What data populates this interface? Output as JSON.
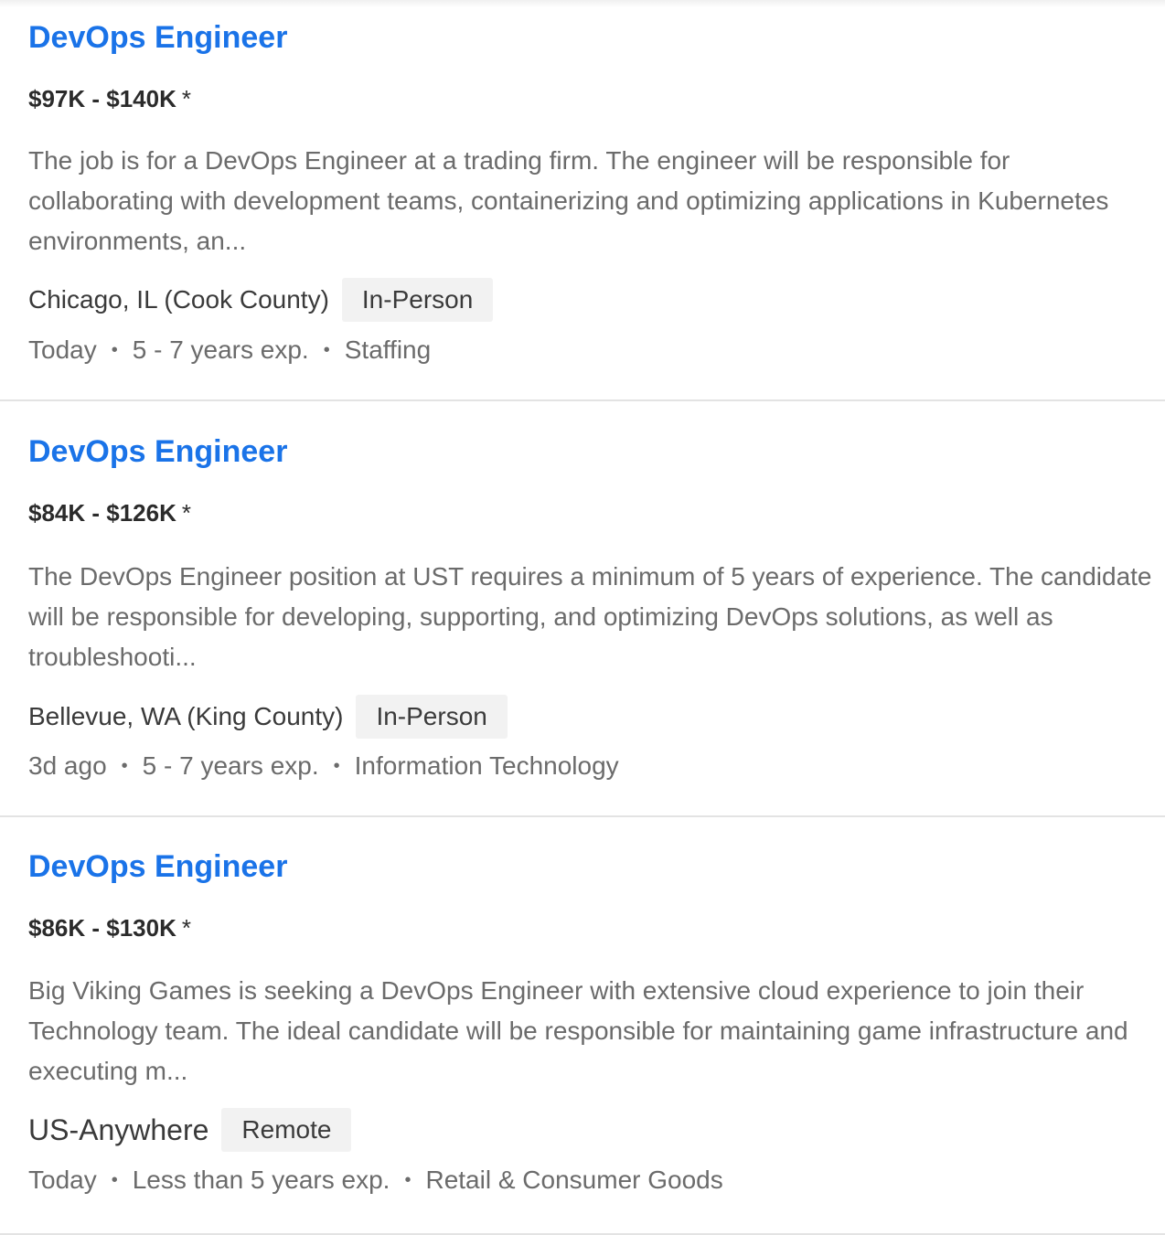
{
  "jobs": [
    {
      "title": "DevOps Engineer",
      "salary": "$97K - $140K",
      "salary_note": "*",
      "description": "The job is for a DevOps Engineer at a trading firm. The engineer will be responsible for collaborating with development teams, containerizing and optimizing applications in Kubernetes environments, an...",
      "location": "Chicago, IL (Cook County)",
      "work_type": "In-Person",
      "posted": "Today",
      "experience": "5 - 7 years exp.",
      "industry": "Staffing"
    },
    {
      "title": "DevOps Engineer",
      "salary": "$84K - $126K",
      "salary_note": "*",
      "description": "The DevOps Engineer position at UST requires a minimum of 5 years of experience. The candidate will be responsible for developing, supporting, and optimizing DevOps solutions, as well as troubleshooti...",
      "location": "Bellevue, WA (King County)",
      "work_type": "In-Person",
      "posted": "3d ago",
      "experience": "5 - 7 years exp.",
      "industry": "Information Technology"
    },
    {
      "title": "DevOps Engineer",
      "salary": "$86K - $130K",
      "salary_note": "*",
      "description": "Big Viking Games is seeking a DevOps Engineer with extensive cloud experience to join their Technology team. The ideal candidate will be responsible for maintaining game infrastructure and executing m...",
      "location": "US-Anywhere",
      "work_type": "Remote",
      "posted": "Today",
      "experience": "Less than 5 years exp.",
      "industry": "Retail & Consumer Goods"
    }
  ],
  "separator": "•",
  "colors": {
    "title_link": "#1a73e8",
    "salary_text": "#2b2b2b",
    "muted_text": "#6b6b6b",
    "badge_bg": "#f2f2f2",
    "divider": "#e3e3e3"
  }
}
